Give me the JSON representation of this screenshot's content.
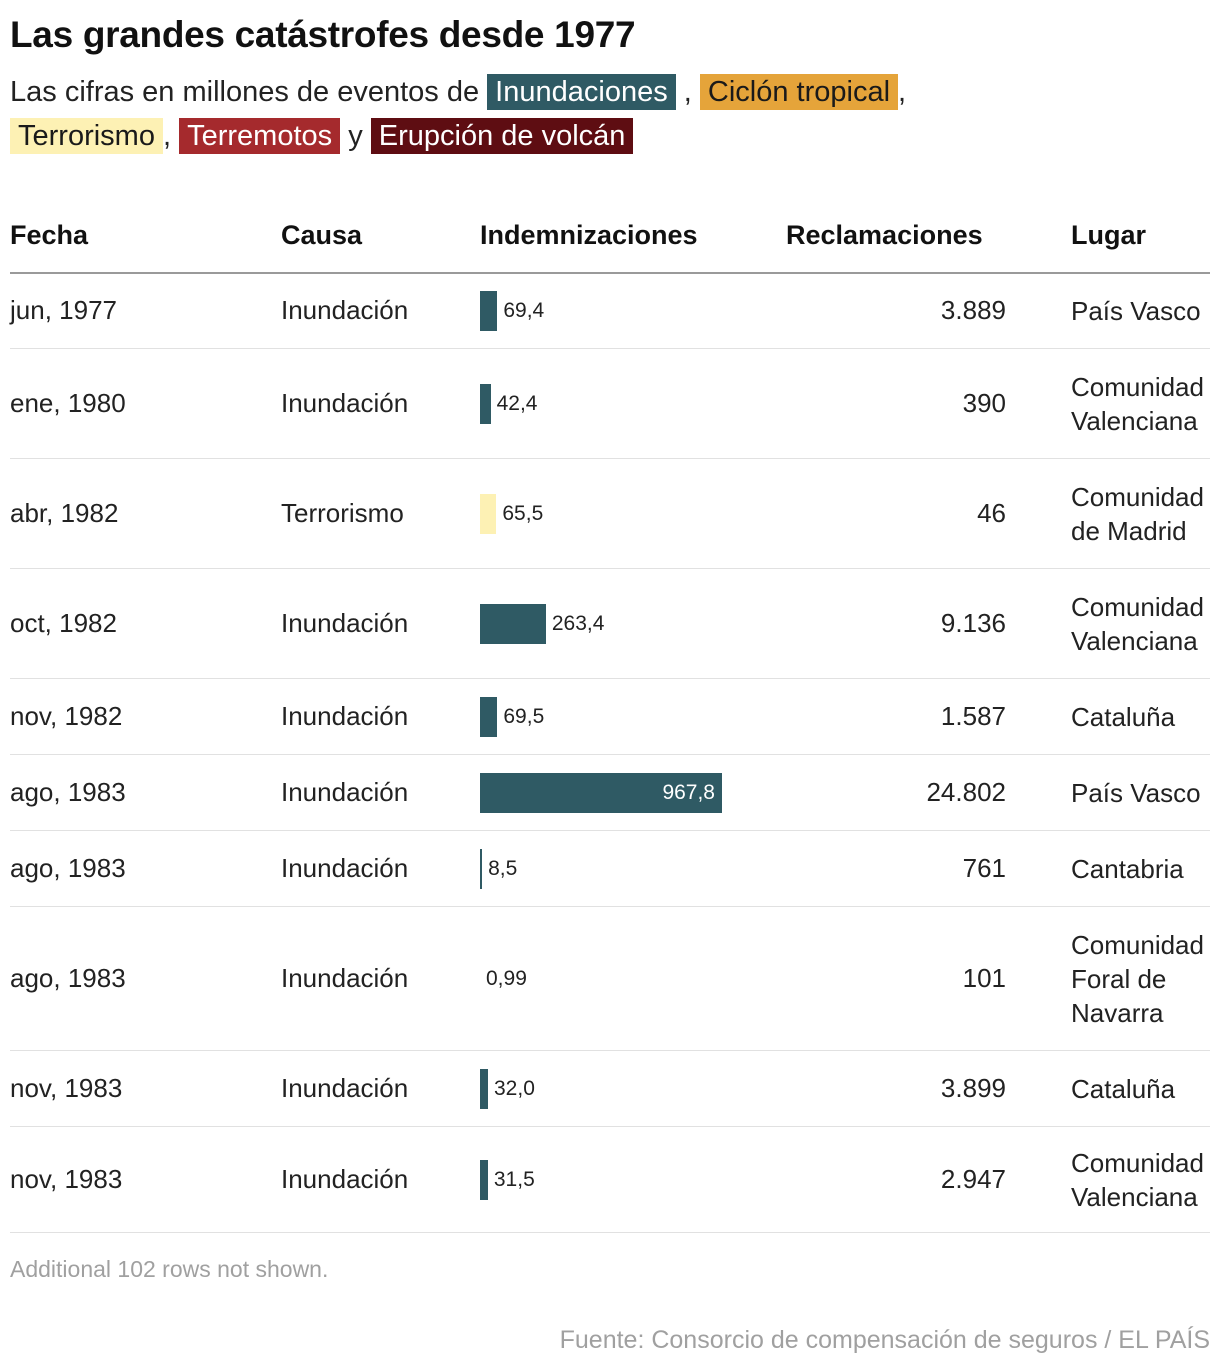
{
  "title": "Las grandes catástrofes desde 1977",
  "subtitle": {
    "lead": "Las cifras en millones de eventos de",
    "sep_1": ",",
    "sep_2": ",",
    "sep_3": ",",
    "conj": "y"
  },
  "legend": [
    {
      "label": "Inundaciones",
      "color": "#2f5a64"
    },
    {
      "label": "Ciclón tropical",
      "color": "#e5a43a"
    },
    {
      "label": "Terrorismo",
      "color": "#fdf1b4"
    },
    {
      "label": "Terremotos",
      "color": "#a52a2d"
    },
    {
      "label": "Erupción de volcán",
      "color": "#5e0d12"
    }
  ],
  "columns": {
    "fecha": "Fecha",
    "causa": "Causa",
    "indemnizaciones": "Indemnizaciones",
    "reclamaciones": "Reclamaciones",
    "lugar": "Lugar"
  },
  "chart_data": {
    "type": "table",
    "value_column": "Indemnizaciones",
    "value_max": 967.8,
    "rows": [
      {
        "fecha": "jun, 1977",
        "causa": "Inundación",
        "indemnizaciones": 69.4,
        "indemnizaciones_label": "69,4",
        "reclamaciones": "3.889",
        "lugar": "País Vasco",
        "color": "#2f5a64"
      },
      {
        "fecha": "ene, 1980",
        "causa": "Inundación",
        "indemnizaciones": 42.4,
        "indemnizaciones_label": "42,4",
        "reclamaciones": "390",
        "lugar": "Comunidad Valenciana",
        "color": "#2f5a64"
      },
      {
        "fecha": "abr, 1982",
        "causa": "Terrorismo",
        "indemnizaciones": 65.5,
        "indemnizaciones_label": "65,5",
        "reclamaciones": "46",
        "lugar": "Comunidad de Madrid",
        "color": "#fdf1b4"
      },
      {
        "fecha": "oct, 1982",
        "causa": "Inundación",
        "indemnizaciones": 263.4,
        "indemnizaciones_label": "263,4",
        "reclamaciones": "9.136",
        "lugar": "Comunidad Valenciana",
        "color": "#2f5a64"
      },
      {
        "fecha": "nov, 1982",
        "causa": "Inundación",
        "indemnizaciones": 69.5,
        "indemnizaciones_label": "69,5",
        "reclamaciones": "1.587",
        "lugar": "Cataluña",
        "color": "#2f5a64"
      },
      {
        "fecha": "ago, 1983",
        "causa": "Inundación",
        "indemnizaciones": 967.8,
        "indemnizaciones_label": "967,8",
        "reclamaciones": "24.802",
        "lugar": "País Vasco",
        "color": "#2f5a64"
      },
      {
        "fecha": "ago, 1983",
        "causa": "Inundación",
        "indemnizaciones": 8.5,
        "indemnizaciones_label": "8,5",
        "reclamaciones": "761",
        "lugar": "Cantabria",
        "color": "#2f5a64"
      },
      {
        "fecha": "ago, 1983",
        "causa": "Inundación",
        "indemnizaciones": 0.99,
        "indemnizaciones_label": "0,99",
        "reclamaciones": "101",
        "lugar": "Comunidad Foral de Navarra",
        "color": "#2f5a64"
      },
      {
        "fecha": "nov, 1983",
        "causa": "Inundación",
        "indemnizaciones": 32.0,
        "indemnizaciones_label": "32,0",
        "reclamaciones": "3.899",
        "lugar": "Cataluña",
        "color": "#2f5a64"
      },
      {
        "fecha": "nov, 1983",
        "causa": "Inundación",
        "indemnizaciones": 31.5,
        "indemnizaciones_label": "31,5",
        "reclamaciones": "2.947",
        "lugar": "Comunidad Valenciana",
        "color": "#2f5a64"
      }
    ]
  },
  "note": "Additional 102 rows not shown.",
  "source": "Fuente: Consorcio de compensación de seguros / EL PAÍS"
}
